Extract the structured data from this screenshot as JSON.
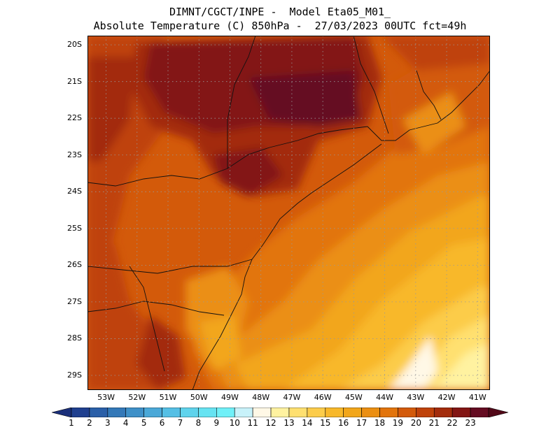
{
  "header": {
    "line1": "DIMNT/CGCT/INPE -  Model Eta05_M01_",
    "line2": "Absolute Temperature (C) 850hPa -  27/03/2023 00UTC fct=49h"
  },
  "map": {
    "lat_labels": [
      "20S",
      "21S",
      "22S",
      "23S",
      "24S",
      "25S",
      "26S",
      "27S",
      "28S",
      "29S"
    ],
    "lon_labels": [
      "53W",
      "52W",
      "51W",
      "50W",
      "49W",
      "48W",
      "47W",
      "46W",
      "45W",
      "44W",
      "43W",
      "42W",
      "41W"
    ],
    "lat_range": [
      -29.4,
      -19.75
    ],
    "lon_range": [
      -53.6,
      -40.6
    ],
    "grid": true
  },
  "colorbar": {
    "labels": [
      "1",
      "2",
      "3",
      "4",
      "5",
      "6",
      "7",
      "8",
      "9",
      "10",
      "11",
      "12",
      "13",
      "14",
      "15",
      "16",
      "17",
      "18",
      "19",
      "20",
      "21",
      "22",
      "23"
    ],
    "colors": [
      "#1f3f8f",
      "#2a5fa8",
      "#3378b8",
      "#3e90c8",
      "#4aa8d8",
      "#55bfe5",
      "#5fd3ec",
      "#66e3f2",
      "#70f0f8",
      "#c8f2fa",
      "#fff8e6",
      "#fff2a0",
      "#ffe070",
      "#fccc4a",
      "#f8b82a",
      "#f2a61a",
      "#eb8f12",
      "#e2740c",
      "#d35a0a",
      "#bf420a",
      "#a32c0c",
      "#831614",
      "#650c22"
    ],
    "underflow_color": "#1a2f7a",
    "overflow_color": "#520818"
  }
}
